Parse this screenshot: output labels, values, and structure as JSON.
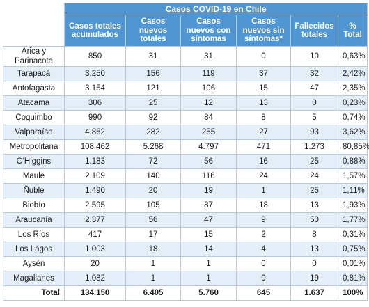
{
  "table": {
    "title": "Casos COVID-19 en Chile",
    "headers": [
      "Casos totales acumulados",
      "Casos nuevos totales",
      "Casos nuevos con síntomas",
      "Casos nuevos sin síntomas*",
      "Fallecidos totales",
      "% Total"
    ],
    "rows": [
      {
        "region": "Arica y Parinacota",
        "values": [
          "850",
          "31",
          "31",
          "0",
          "10",
          "0,63%"
        ]
      },
      {
        "region": "Tarapacá",
        "values": [
          "3.250",
          "156",
          "119",
          "37",
          "32",
          "2,42%"
        ]
      },
      {
        "region": "Antofagasta",
        "values": [
          "3.154",
          "121",
          "106",
          "15",
          "47",
          "2,35%"
        ]
      },
      {
        "region": "Atacama",
        "values": [
          "306",
          "25",
          "12",
          "13",
          "0",
          "0,23%"
        ]
      },
      {
        "region": "Coquimbo",
        "values": [
          "990",
          "92",
          "84",
          "8",
          "5",
          "0,74%"
        ]
      },
      {
        "region": "Valparaíso",
        "values": [
          "4.862",
          "282",
          "255",
          "27",
          "93",
          "3,62%"
        ]
      },
      {
        "region": "Metropolitana",
        "values": [
          "108.462",
          "5.268",
          "4.797",
          "471",
          "1.273",
          "80,85%"
        ]
      },
      {
        "region": "O'Higgins",
        "values": [
          "1.183",
          "72",
          "56",
          "16",
          "25",
          "0,88%"
        ]
      },
      {
        "region": "Maule",
        "values": [
          "2.109",
          "140",
          "116",
          "24",
          "24",
          "1,57%"
        ]
      },
      {
        "region": "Ñuble",
        "values": [
          "1.490",
          "20",
          "19",
          "1",
          "25",
          "1,11%"
        ]
      },
      {
        "region": "Biobío",
        "values": [
          "2.595",
          "105",
          "87",
          "18",
          "13",
          "1,93%"
        ]
      },
      {
        "region": "Araucanía",
        "values": [
          "2.377",
          "56",
          "47",
          "9",
          "50",
          "1,77%"
        ]
      },
      {
        "region": "Los Ríos",
        "values": [
          "417",
          "17",
          "15",
          "2",
          "8",
          "0,31%"
        ]
      },
      {
        "region": "Los Lagos",
        "values": [
          "1.003",
          "18",
          "14",
          "4",
          "13",
          "0,75%"
        ]
      },
      {
        "region": "Aysén",
        "values": [
          "20",
          "1",
          "1",
          "0",
          "0",
          "0,01%"
        ]
      },
      {
        "region": "Magallanes",
        "values": [
          "1.082",
          "1",
          "1",
          "0",
          "19",
          "0,81%"
        ]
      }
    ],
    "total": {
      "label": "Total",
      "values": [
        "134.150",
        "6.405",
        "5.760",
        "645",
        "1.637",
        "100%"
      ]
    }
  },
  "colors": {
    "header_bg": "#4f96d3",
    "alt_row_bg": "#e4eef8",
    "border": "#b9c8d8"
  }
}
